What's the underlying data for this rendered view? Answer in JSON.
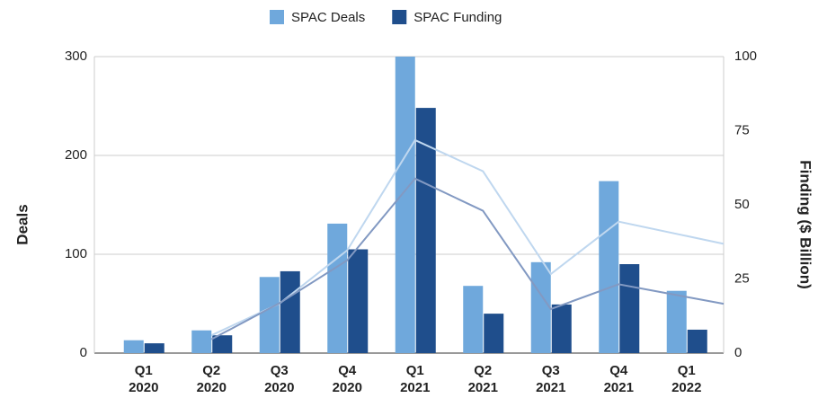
{
  "chart_data": {
    "type": "bar",
    "categories": [
      [
        "Q1",
        "2020"
      ],
      [
        "Q2",
        "2020"
      ],
      [
        "Q3",
        "2020"
      ],
      [
        "Q4",
        "2020"
      ],
      [
        "Q1",
        "2021"
      ],
      [
        "Q2",
        "2021"
      ],
      [
        "Q3",
        "2021"
      ],
      [
        "Q4",
        "2021"
      ],
      [
        "Q1",
        "2022"
      ]
    ],
    "series": [
      {
        "name": "SPAC Deals",
        "color": "#6fa8dc",
        "values": [
          13,
          23,
          77,
          131,
          300,
          68,
          92,
          174,
          63
        ],
        "trendline": "moving-average",
        "trend_color": "#bfd7ef"
      },
      {
        "name": "SPAC Funding",
        "color": "#1f4e8c",
        "axis": "y2",
        "values": [
          3.3,
          6,
          27.6,
          35,
          82.7,
          13.3,
          16.4,
          30,
          7.9
        ],
        "trendline": "moving-average",
        "trend_color": "#8299c2"
      }
    ],
    "ylabel": "Deals",
    "y2label": "Finding ($ Billion)",
    "ylim": [
      0,
      300
    ],
    "yticks": [
      0,
      100,
      200,
      300
    ],
    "y2lim": [
      0,
      100
    ],
    "y2ticks": [
      0,
      25,
      50,
      75,
      100
    ],
    "grid": true,
    "legend": "top"
  }
}
